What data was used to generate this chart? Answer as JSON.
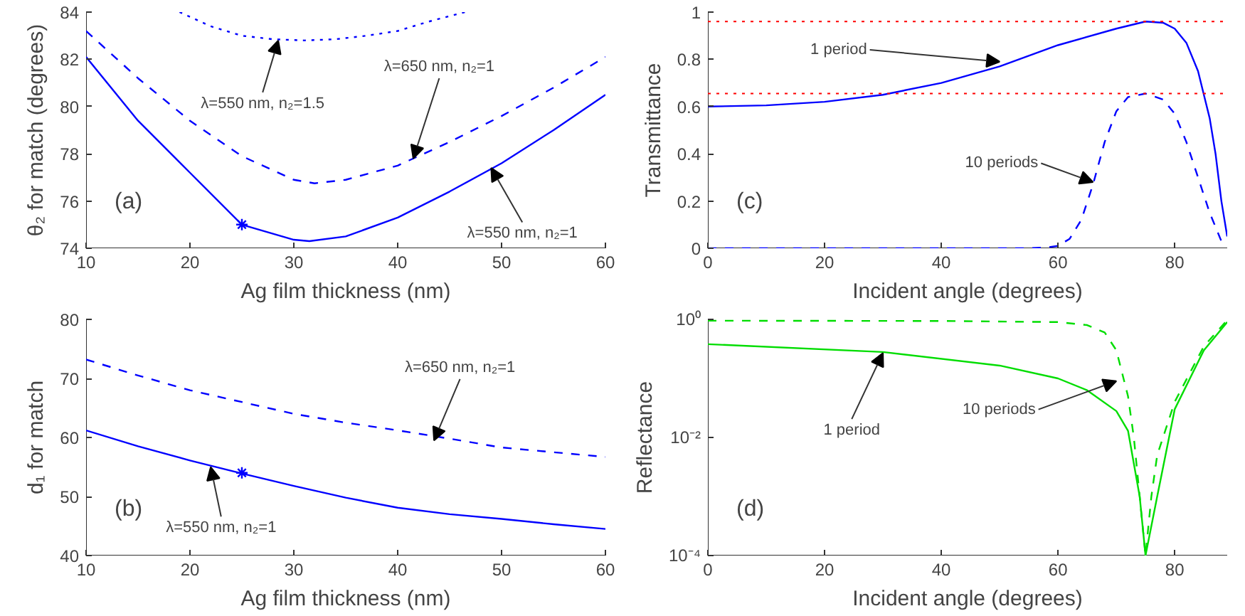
{
  "chart_data": [
    {
      "type": "line",
      "xlabel": "Ag film thickness (nm)",
      "ylabel": "θ₂ for match (degrees)",
      "xlim": [
        10,
        60
      ],
      "ylim": [
        74,
        84
      ],
      "xticks": [
        10,
        20,
        30,
        40,
        50,
        60
      ],
      "yticks": [
        74,
        76,
        78,
        80,
        82,
        84
      ],
      "grid": false,
      "series": [
        {
          "line_style": "solid",
          "color": "#0000ff",
          "x": [
            10,
            15,
            20,
            25,
            30,
            31.5,
            35,
            40,
            45,
            50,
            55,
            60
          ],
          "values": [
            82.1,
            79.4,
            77.2,
            75.0,
            74.36,
            74.3,
            74.5,
            75.3,
            76.4,
            77.6,
            79.0,
            80.5
          ]
        },
        {
          "line_style": "dashed",
          "color": "#0000ff",
          "x": [
            10,
            15,
            20,
            25,
            30,
            32,
            35,
            40,
            45,
            50,
            55,
            60
          ],
          "values": [
            83.2,
            81.2,
            79.4,
            77.9,
            76.9,
            76.75,
            76.9,
            77.5,
            78.5,
            79.6,
            80.8,
            82.1
          ]
        },
        {
          "line_style": "dotted",
          "color": "#0000ff",
          "x": [
            19,
            22,
            25,
            28,
            31,
            34,
            37,
            40,
            43,
            46.5
          ],
          "values": [
            84.0,
            83.4,
            83.0,
            82.85,
            82.8,
            82.85,
            83.0,
            83.2,
            83.6,
            84.0
          ]
        },
        {
          "type": "scatter",
          "marker": "cross",
          "color": "#0000ff",
          "x": [
            25
          ],
          "values": [
            75
          ]
        }
      ],
      "annotations": [
        {
          "text": "λ=550 nm, n₂=1.5",
          "x": 28.5,
          "y": 82.8
        },
        {
          "text": "λ=650 nm, n₂=1",
          "x": 41.5,
          "y": 77.8
        },
        {
          "text": "λ=550 nm, n₂=1",
          "x": 49,
          "y": 77.4
        },
        "(a)"
      ]
    },
    {
      "type": "line",
      "xlabel": "Incident angle (degrees)",
      "ylabel": "Transmittance",
      "xlim": [
        0,
        89
      ],
      "ylim": [
        0,
        1
      ],
      "xticks": [
        0,
        20,
        40,
        60,
        80
      ],
      "yticks": [
        0,
        0.2,
        0.4,
        0.6,
        0.8,
        1
      ],
      "grid": false,
      "series": [
        {
          "line_style": "solid",
          "color": "#0000ff",
          "x": [
            0,
            10,
            20,
            30,
            40,
            50,
            60,
            70,
            75,
            78,
            80,
            82,
            84,
            85,
            86,
            87,
            88,
            89
          ],
          "values": [
            0.6,
            0.605,
            0.62,
            0.65,
            0.7,
            0.77,
            0.86,
            0.93,
            0.96,
            0.955,
            0.93,
            0.87,
            0.75,
            0.65,
            0.55,
            0.4,
            0.2,
            0.05
          ]
        },
        {
          "line_style": "dashed",
          "color": "#0000ff",
          "x": [
            0,
            20,
            40,
            55,
            58,
            60,
            62,
            64,
            66,
            68,
            70,
            72,
            75,
            78,
            80,
            82,
            84,
            86,
            88,
            89
          ],
          "values": [
            0,
            0,
            0,
            0,
            0.003,
            0.01,
            0.04,
            0.12,
            0.27,
            0.45,
            0.58,
            0.64,
            0.655,
            0.63,
            0.57,
            0.45,
            0.3,
            0.15,
            0.03,
            0.01
          ]
        }
      ],
      "ref_lines": [
        {
          "axis": "y",
          "value": 0.96,
          "color": "#ff0000",
          "line_style": "dotted"
        },
        {
          "axis": "y",
          "value": 0.655,
          "color": "#ff0000",
          "line_style": "dotted"
        }
      ],
      "annotations": [
        {
          "text": "1 period",
          "x": 50,
          "y": 0.79
        },
        {
          "text": "10 periods",
          "x": 66,
          "y": 0.28
        },
        "(c)"
      ]
    },
    {
      "type": "line",
      "xlabel": "Ag film thickness (nm)",
      "ylabel": "d₁ for match",
      "xlim": [
        10,
        60
      ],
      "ylim": [
        40,
        80
      ],
      "xticks": [
        10,
        20,
        30,
        40,
        50,
        60
      ],
      "yticks": [
        40,
        50,
        60,
        70,
        80
      ],
      "grid": false,
      "series": [
        {
          "line_style": "solid",
          "color": "#0000ff",
          "x": [
            10,
            15,
            20,
            25,
            30,
            35,
            40,
            45,
            50,
            55,
            60
          ],
          "values": [
            61.2,
            58.5,
            56.1,
            53.9,
            51.8,
            49.8,
            48.1,
            47.0,
            46.2,
            45.3,
            44.5
          ]
        },
        {
          "line_style": "dashed",
          "color": "#0000ff",
          "x": [
            10,
            15,
            20,
            25,
            30,
            35,
            40,
            45,
            50,
            55,
            60
          ],
          "values": [
            73.2,
            70.5,
            68.0,
            66.0,
            64.0,
            62.5,
            61.2,
            59.8,
            58.3,
            57.5,
            56.7
          ]
        },
        {
          "type": "scatter",
          "marker": "cross",
          "color": "#0000ff",
          "x": [
            25
          ],
          "values": [
            54
          ]
        }
      ],
      "annotations": [
        {
          "text": "λ=650 nm, n₂=1",
          "x": 43.5,
          "y": 59.5
        },
        {
          "text": "λ=550 nm, n₂=1",
          "x": 22,
          "y": 55
        },
        "(b)"
      ]
    },
    {
      "type": "line",
      "xlabel": "Incident angle (degrees)",
      "ylabel": "Reflectance",
      "log": "y",
      "xlim": [
        0,
        89
      ],
      "ylim": [
        0.0001,
        1
      ],
      "xticks": [
        0,
        20,
        40,
        60,
        80
      ],
      "yticks": [
        {
          "value": 1,
          "label": "10⁰"
        },
        {
          "value": 0.01,
          "label": "10⁻²"
        },
        {
          "value": 0.0001,
          "label": "10⁻⁴"
        }
      ],
      "grid": false,
      "series": [
        {
          "line_style": "solid",
          "color": "#00dd00",
          "x": [
            0,
            30,
            50,
            60,
            65,
            70,
            72,
            74,
            75,
            77,
            80,
            85,
            89
          ],
          "values": [
            0.38,
            0.28,
            0.165,
            0.1,
            0.063,
            0.028,
            0.013,
            0.001,
            0.0001,
            0.001,
            0.03,
            0.3,
            0.9
          ]
        },
        {
          "line_style": "dashed",
          "color": "#00dd00",
          "x": [
            0,
            40,
            60,
            65,
            68,
            70,
            72,
            73,
            74,
            75,
            76,
            77,
            80,
            85,
            89
          ],
          "values": [
            0.95,
            0.94,
            0.9,
            0.8,
            0.6,
            0.3,
            0.05,
            0.01,
            0.001,
            0.0001,
            0.001,
            0.005,
            0.04,
            0.35,
            0.97
          ]
        }
      ],
      "annotations": [
        {
          "text": "1 period",
          "x": 30,
          "y": 0.27
        },
        {
          "text": "10 periods",
          "x": 70,
          "y": 0.09
        },
        "(d)"
      ]
    }
  ]
}
